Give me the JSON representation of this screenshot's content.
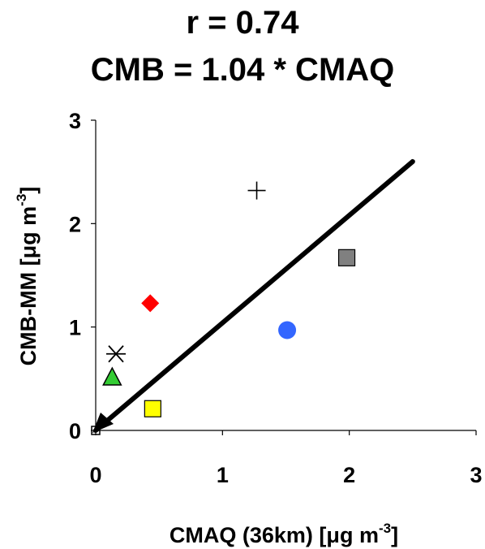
{
  "chart_data": {
    "type": "scatter",
    "title_line1": "r = 0.74",
    "title_line2": "CMB = 1.04 * CMAQ",
    "xlabel": {
      "pre": "CMAQ (36km) [",
      "mu": "μ",
      "post": "g m",
      "sup": "-3",
      "end": "]"
    },
    "ylabel": {
      "pre": "CMB-MM [",
      "mu": "μ",
      "post": "g m",
      "sup": "-3",
      "end": "]"
    },
    "xlim": [
      0,
      3
    ],
    "ylim": [
      0,
      3
    ],
    "xticks": [
      "0",
      "1",
      "2",
      "3"
    ],
    "yticks": [
      "0",
      "1",
      "2",
      "3"
    ],
    "grid": false,
    "points": [
      {
        "marker": "hollow-square",
        "color": "#000000",
        "x": 0.0,
        "y": 0.0
      },
      {
        "marker": "triangle",
        "color": "#33cc33",
        "x": 0.13,
        "y": 0.51
      },
      {
        "marker": "asterisk",
        "color": "#000000",
        "x": 0.16,
        "y": 0.74
      },
      {
        "marker": "diamond",
        "color": "#ff0000",
        "x": 0.43,
        "y": 1.23
      },
      {
        "marker": "square",
        "color": "#ffff00",
        "x": 0.45,
        "y": 0.21
      },
      {
        "marker": "plus",
        "color": "#000000",
        "x": 1.27,
        "y": 2.32
      },
      {
        "marker": "circle",
        "color": "#3366ff",
        "x": 1.51,
        "y": 0.97
      },
      {
        "marker": "square",
        "color": "#808080",
        "x": 1.98,
        "y": 1.67
      }
    ],
    "fit_line": {
      "slope": 1.04,
      "x_range": [
        0,
        2.5
      ],
      "color": "#000000"
    }
  }
}
